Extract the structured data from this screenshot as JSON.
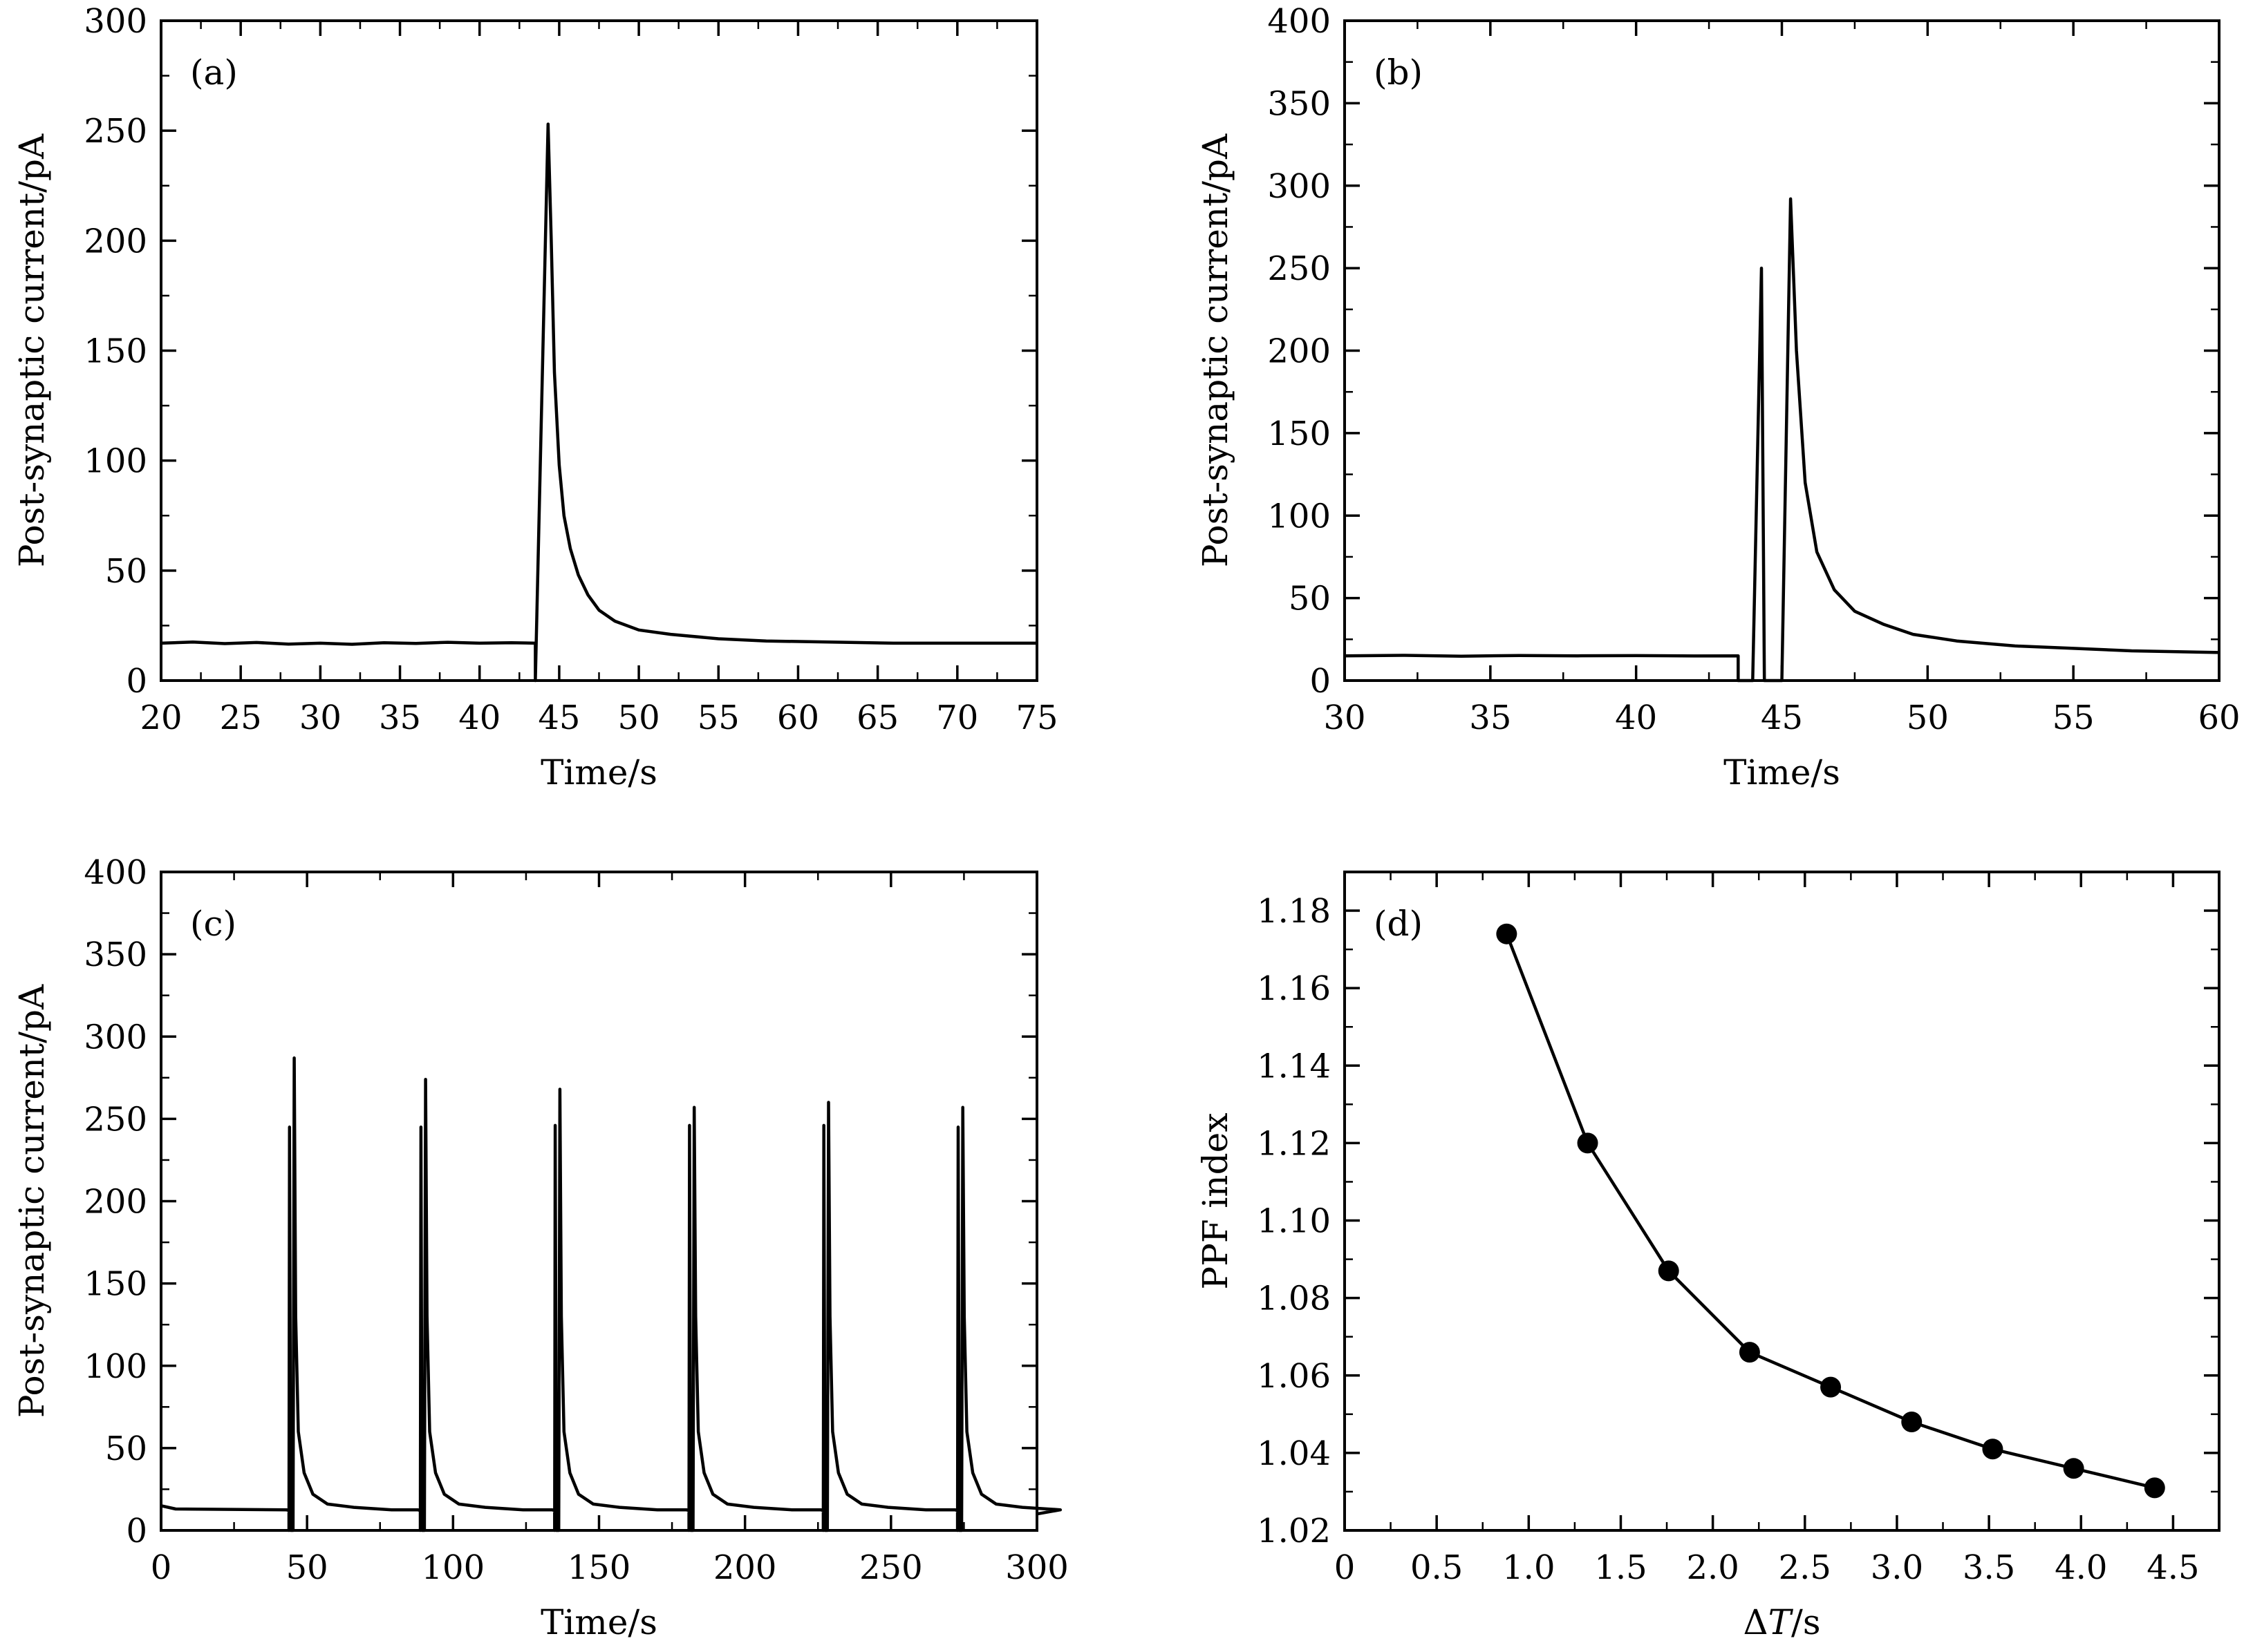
{
  "chart_data": [
    {
      "id": "a",
      "type": "line",
      "panel_label": "(a)",
      "xlabel": "Time/s",
      "ylabel": "Post-synaptic current/pA",
      "xlim": [
        20,
        75
      ],
      "ylim": [
        0,
        300
      ],
      "xticks": [
        20,
        25,
        30,
        35,
        40,
        45,
        50,
        55,
        60,
        65,
        70,
        75
      ],
      "yticks": [
        0,
        50,
        100,
        150,
        200,
        250,
        300
      ],
      "series": [
        {
          "x": [
            20,
            22,
            24,
            26,
            28,
            30,
            32,
            34,
            36,
            38,
            40,
            42,
            43.5,
            43.5,
            44.3,
            44.5,
            44.7,
            45.0,
            45.3,
            45.7,
            46.2,
            46.8,
            47.5,
            48.5,
            50,
            52,
            55,
            58,
            62,
            66,
            70,
            75
          ],
          "y": [
            17,
            17.5,
            16.8,
            17.3,
            16.6,
            17,
            16.5,
            17.2,
            16.9,
            17.4,
            17,
            17.2,
            17,
            0,
            253,
            200,
            140,
            98,
            75,
            60,
            48,
            39,
            32,
            27,
            23,
            21,
            19,
            18,
            17.5,
            17,
            17,
            17
          ]
        }
      ]
    },
    {
      "id": "b",
      "type": "line",
      "panel_label": "(b)",
      "xlabel": "Time/s",
      "ylabel": "Post-synaptic current/pA",
      "xlim": [
        30,
        60
      ],
      "ylim": [
        0,
        400
      ],
      "xticks": [
        30,
        35,
        40,
        45,
        50,
        55,
        60
      ],
      "yticks": [
        0,
        50,
        100,
        150,
        200,
        250,
        300,
        350,
        400
      ],
      "series": [
        {
          "x": [
            30,
            32,
            34,
            36,
            38,
            40,
            42,
            43.5,
            43.5,
            44.0,
            44.3,
            44.4,
            44.5,
            45.0,
            45.3,
            45.5,
            45.8,
            46.2,
            46.8,
            47.5,
            48.5,
            49.5,
            51,
            53,
            55,
            57,
            60
          ],
          "y": [
            15,
            15.3,
            14.8,
            15.2,
            15,
            15.1,
            14.9,
            15,
            0,
            0,
            250,
            0,
            0,
            0,
            292,
            200,
            120,
            78,
            55,
            42,
            34,
            28,
            24,
            21,
            19.5,
            18,
            17
          ]
        }
      ]
    },
    {
      "id": "c",
      "type": "line",
      "panel_label": "(c)",
      "xlabel": "Time/s",
      "ylabel": "Post-synaptic current/pA",
      "xlim": [
        0,
        300
      ],
      "ylim": [
        0,
        400
      ],
      "xticks": [
        0,
        50,
        100,
        150,
        200,
        250,
        300
      ],
      "yticks": [
        0,
        50,
        100,
        150,
        200,
        250,
        300,
        350,
        400
      ],
      "pulse_pairs": [
        {
          "t": 44,
          "p1": 245,
          "p2": 287
        },
        {
          "t": 89,
          "p1": 245,
          "p2": 274
        },
        {
          "t": 135,
          "p1": 246,
          "p2": 268
        },
        {
          "t": 181,
          "p1": 246,
          "p2": 257
        },
        {
          "t": 227,
          "p1": 246,
          "p2": 260
        },
        {
          "t": 273,
          "p1": 245,
          "p2": 257
        }
      ],
      "baseline_pA": 12
    },
    {
      "id": "d",
      "type": "line",
      "panel_label": "(d)",
      "xlabel": "ΔT/s",
      "ylabel": "PPF index",
      "xlim": [
        0,
        4.75
      ],
      "ylim": [
        1.02,
        1.19
      ],
      "xticks": [
        0,
        0.5,
        1.0,
        1.5,
        2.0,
        2.5,
        3.0,
        3.5,
        4.0,
        4.5
      ],
      "xtick_labels": [
        "0",
        "0.5",
        "1.0",
        "1.5",
        "2.0",
        "2.5",
        "3.0",
        "3.5",
        "4.0",
        "4.5"
      ],
      "yticks": [
        1.02,
        1.04,
        1.06,
        1.08,
        1.1,
        1.12,
        1.14,
        1.16,
        1.18
      ],
      "ytick_labels": [
        "1.02",
        "1.04",
        "1.06",
        "1.08",
        "1.10",
        "1.12",
        "1.14",
        "1.16",
        "1.18"
      ],
      "series": [
        {
          "x": [
            0.88,
            1.32,
            1.76,
            2.2,
            2.64,
            3.08,
            3.52,
            3.96,
            4.4
          ],
          "y": [
            1.174,
            1.12,
            1.087,
            1.066,
            1.057,
            1.048,
            1.041,
            1.036,
            1.031
          ]
        }
      ]
    }
  ]
}
